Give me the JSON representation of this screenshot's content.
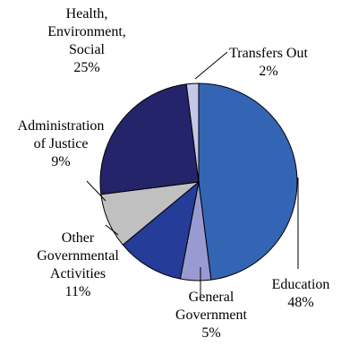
{
  "chart_data": {
    "type": "pie",
    "slices": [
      {
        "label_lines": [
          "Education",
          "48%"
        ],
        "value": 48,
        "color": "#3465b4"
      },
      {
        "label_lines": [
          "General",
          "Government",
          "5%"
        ],
        "value": 5,
        "color": "#9a9ad2"
      },
      {
        "label_lines": [
          "Other",
          "Governmental",
          "Activities",
          "11%"
        ],
        "value": 11,
        "color": "#253c98"
      },
      {
        "label_lines": [
          "Administration",
          "of Justice",
          "9%"
        ],
        "value": 9,
        "color": "#c0c0c0"
      },
      {
        "label_lines": [
          "Health,",
          "Environment,",
          "Social",
          "25%"
        ],
        "value": 25,
        "color": "#24246a"
      },
      {
        "label_lines": [
          "Transfers Out",
          "2%"
        ],
        "value": 2,
        "color": "#c6c6e8"
      }
    ],
    "start_angle_deg": 0,
    "direction": "clockwise"
  }
}
